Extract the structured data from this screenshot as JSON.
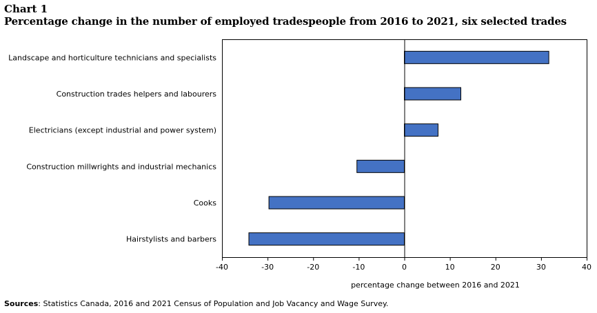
{
  "header": {
    "chart_number": "Chart 1",
    "title": "Percentage change in the number of employed tradespeople from 2016 to 2021, six selected trades"
  },
  "footer": {
    "sources_label": "Sources",
    "sources_text": ": Statistics Canada, 2016 and 2021 Census of Population and Job Vacancy and Wage Survey."
  },
  "colors": {
    "bar_fill": "#4472c4",
    "bar_stroke": "#000000"
  },
  "chart_data": {
    "type": "bar",
    "orientation": "horizontal",
    "title": "Percentage change in the number of employed tradespeople from 2016 to 2021, six selected trades",
    "xlabel": "percentage change between 2016 and 2021",
    "ylabel": "",
    "xlim": [
      -40,
      40
    ],
    "xticks": [
      -40,
      -30,
      -20,
      -10,
      0,
      10,
      20,
      30,
      40
    ],
    "grid": false,
    "legend": "none",
    "categories": [
      "Landscape and horticulture technicians and specialists",
      "Construction trades helpers and labourers",
      "Electricians (except industrial and power system)",
      "Construction millwrights and industrial mechanics",
      "Cooks",
      "Hairstylists and barbers"
    ],
    "values": [
      31.7,
      12.4,
      7.4,
      -10.4,
      -29.7,
      -34.1
    ]
  }
}
